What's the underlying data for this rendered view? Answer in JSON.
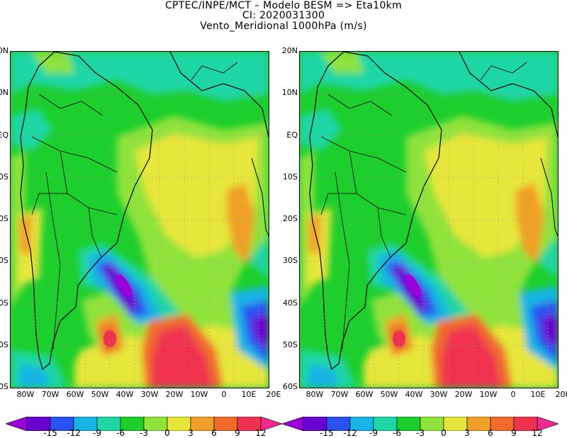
{
  "title": {
    "line1": "CPTEC/INPE/MCT –   Modelo BESM => Eta10km",
    "line2": "CI: 2020031300",
    "line3": "Vento_Meridional 1000hPa (m/s)"
  },
  "map_axes": {
    "lat_labels": [
      "20N",
      "10N",
      "EQ",
      "10S",
      "20S",
      "30S",
      "40S",
      "50S",
      "60S"
    ],
    "lon_labels": [
      "80W",
      "70W",
      "60W",
      "50W",
      "40W",
      "30W",
      "20W",
      "10W",
      "0",
      "10E",
      "20E"
    ],
    "lat_range": [
      -60,
      20
    ],
    "lon_range": [
      -85,
      20
    ],
    "grid": "dotted"
  },
  "colorbar": {
    "labels": [
      "-15",
      "-12",
      "-9",
      "-6",
      "-3",
      "0",
      "3",
      "6",
      "9",
      "12"
    ],
    "colors": [
      "#9b00d8",
      "#6a00d2",
      "#2a52f0",
      "#19b4e6",
      "#1fd6a6",
      "#1ccf2c",
      "#8fe33a",
      "#e6e63a",
      "#f0a028",
      "#f06a2a",
      "#f03250",
      "#f02890"
    ]
  },
  "panels": [
    {
      "name": "left"
    },
    {
      "name": "right"
    }
  ]
}
